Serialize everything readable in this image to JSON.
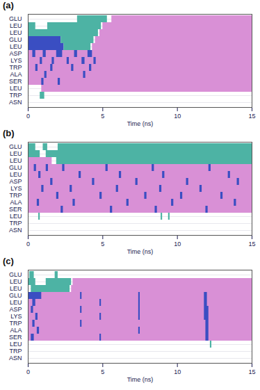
{
  "chart_data": [
    {
      "type": "timeline",
      "title": "(a)",
      "xlabel": "Time (ns)",
      "xlim": [
        0,
        15
      ],
      "xticks": [
        0,
        5,
        10,
        15
      ],
      "grid": true,
      "categories": [
        "GLU",
        "LEU",
        "LEU",
        "GLU",
        "LEU",
        "ASP",
        "LYS",
        "TRP",
        "ALA",
        "SER",
        "LEU",
        "TRP",
        "ASN"
      ],
      "segments": [
        [
          [
            3.3,
            5.3,
            "#4db3a4"
          ],
          [
            5.6,
            15,
            "#d990d6"
          ]
        ],
        [
          [
            0,
            0.5,
            "#4db3a4"
          ],
          [
            1.3,
            4.9,
            "#4db3a4"
          ],
          [
            5.0,
            15,
            "#d990d6"
          ]
        ],
        [
          [
            0,
            4.7,
            "#4db3a4"
          ],
          [
            4.8,
            15,
            "#d990d6"
          ]
        ],
        [
          [
            0,
            2.2,
            "#3a4ec2"
          ],
          [
            2.2,
            4.4,
            "#4db3a4"
          ],
          [
            4.5,
            15,
            "#d990d6"
          ]
        ],
        [
          [
            0,
            2.4,
            "#3a4ec2"
          ],
          [
            2.4,
            4.2,
            "#4db3a4"
          ],
          [
            4.3,
            15,
            "#d990d6"
          ]
        ],
        [
          [
            0,
            15,
            "#d990d6"
          ],
          [
            0.3,
            0.5,
            "#3a4ec2"
          ],
          [
            1.0,
            1.2,
            "#3a4ec2"
          ],
          [
            1.9,
            2.3,
            "#3a4ec2"
          ],
          [
            3.1,
            3.3,
            "#3a4ec2"
          ],
          [
            4.0,
            4.3,
            "#3a4ec2"
          ]
        ],
        [
          [
            0,
            15,
            "#d990d6"
          ],
          [
            0.8,
            0.95,
            "#3a4ec2"
          ],
          [
            1.6,
            1.75,
            "#3a4ec2"
          ],
          [
            2.6,
            2.75,
            "#3a4ec2"
          ],
          [
            3.6,
            3.8,
            "#3a4ec2"
          ],
          [
            4.4,
            4.55,
            "#3a4ec2"
          ]
        ],
        [
          [
            0,
            15,
            "#d990d6"
          ],
          [
            0.5,
            0.65,
            "#3a4ec2"
          ],
          [
            1.5,
            1.65,
            "#3a4ec2"
          ],
          [
            2.9,
            3.05,
            "#3a4ec2"
          ],
          [
            4.1,
            4.25,
            "#3a4ec2"
          ]
        ],
        [
          [
            0,
            15,
            "#d990d6"
          ],
          [
            1.1,
            1.25,
            "#3a4ec2"
          ],
          [
            3.7,
            3.85,
            "#3a4ec2"
          ]
        ],
        [
          [
            0,
            15,
            "#d990d6"
          ],
          [
            0.9,
            1.05,
            "#3a4ec2"
          ],
          [
            2.0,
            2.15,
            "#3a4ec2"
          ]
        ],
        [
          [
            0.9,
            15,
            "#d990d6"
          ]
        ],
        [
          [
            0.8,
            1.1,
            "#4db3a4"
          ]
        ],
        []
      ]
    },
    {
      "type": "timeline",
      "title": "(b)",
      "xlabel": "Time (ns)",
      "xlim": [
        0,
        15
      ],
      "xticks": [
        0,
        5,
        10,
        15
      ],
      "grid": true,
      "categories": [
        "GLU",
        "LEU",
        "LEU",
        "GLU",
        "LEU",
        "ASP",
        "LYS",
        "TRP",
        "ALA",
        "SER",
        "LEU",
        "TRP",
        "ASN"
      ],
      "segments": [
        [
          [
            0,
            0.5,
            "#4db3a4"
          ],
          [
            1.0,
            1.3,
            "#4db3a4"
          ],
          [
            2.0,
            15,
            "#4db3a4"
          ]
        ],
        [
          [
            0,
            0.8,
            "#4db3a4"
          ],
          [
            1.2,
            15,
            "#4db3a4"
          ]
        ],
        [
          [
            0,
            1.6,
            "#d990d6"
          ],
          [
            1.9,
            15,
            "#4db3a4"
          ]
        ],
        [
          [
            0,
            15,
            "#d990d6"
          ],
          [
            0.4,
            0.55,
            "#3a4ec2"
          ],
          [
            1.2,
            1.35,
            "#3a4ec2"
          ],
          [
            2.3,
            2.45,
            "#3a4ec2"
          ],
          [
            5.2,
            5.35,
            "#3a4ec2"
          ],
          [
            8.3,
            8.45,
            "#3a4ec2"
          ],
          [
            12.1,
            12.25,
            "#3a4ec2"
          ]
        ],
        [
          [
            0,
            15,
            "#d990d6"
          ],
          [
            0.7,
            0.85,
            "#3a4ec2"
          ],
          [
            3.4,
            3.55,
            "#3a4ec2"
          ],
          [
            6.1,
            6.25,
            "#3a4ec2"
          ],
          [
            9.0,
            9.15,
            "#3a4ec2"
          ],
          [
            13.4,
            13.55,
            "#3a4ec2"
          ]
        ],
        [
          [
            0,
            15,
            "#d990d6"
          ],
          [
            1.5,
            1.65,
            "#3a4ec2"
          ],
          [
            4.3,
            4.45,
            "#3a4ec2"
          ],
          [
            7.2,
            7.35,
            "#3a4ec2"
          ],
          [
            10.6,
            10.75,
            "#3a4ec2"
          ],
          [
            14.0,
            14.15,
            "#3a4ec2"
          ]
        ],
        [
          [
            0,
            15,
            "#d990d6"
          ],
          [
            0.9,
            1.05,
            "#3a4ec2"
          ],
          [
            2.8,
            2.95,
            "#3a4ec2"
          ],
          [
            5.9,
            6.05,
            "#3a4ec2"
          ],
          [
            8.8,
            8.95,
            "#3a4ec2"
          ],
          [
            11.5,
            11.65,
            "#3a4ec2"
          ]
        ],
        [
          [
            0,
            15,
            "#d990d6"
          ],
          [
            1.9,
            2.05,
            "#3a4ec2"
          ],
          [
            4.8,
            4.95,
            "#3a4ec2"
          ],
          [
            7.8,
            7.95,
            "#3a4ec2"
          ],
          [
            10.2,
            10.35,
            "#3a4ec2"
          ],
          [
            12.9,
            13.05,
            "#3a4ec2"
          ]
        ],
        [
          [
            0,
            15,
            "#d990d6"
          ],
          [
            0.6,
            0.75,
            "#3a4ec2"
          ],
          [
            3.0,
            3.15,
            "#3a4ec2"
          ],
          [
            6.6,
            6.75,
            "#3a4ec2"
          ],
          [
            9.6,
            9.75,
            "#3a4ec2"
          ],
          [
            13.8,
            13.95,
            "#3a4ec2"
          ]
        ],
        [
          [
            0,
            15,
            "#d990d6"
          ],
          [
            2.2,
            2.35,
            "#3a4ec2"
          ],
          [
            5.5,
            5.65,
            "#3a4ec2"
          ],
          [
            8.5,
            8.65,
            "#3a4ec2"
          ],
          [
            11.9,
            12.05,
            "#3a4ec2"
          ]
        ],
        [
          [
            0.7,
            0.8,
            "#4db3a4"
          ],
          [
            8.9,
            9.0,
            "#4db3a4"
          ],
          [
            9.4,
            9.5,
            "#4db3a4"
          ]
        ],
        [],
        []
      ]
    },
    {
      "type": "timeline",
      "title": "(c)",
      "xlabel": "Time (ns)",
      "xlim": [
        0,
        15
      ],
      "xticks": [
        0,
        5,
        10,
        15
      ],
      "grid": true,
      "categories": [
        "GLU",
        "LEU",
        "LEU",
        "GLU",
        "LEU",
        "ASP",
        "LYS",
        "TRP",
        "ALA",
        "SER",
        "LEU",
        "TRP",
        "ASN"
      ],
      "segments": [
        [
          [
            0.1,
            0.4,
            "#4db3a4"
          ],
          [
            1.8,
            2.0,
            "#4db3a4"
          ]
        ],
        [
          [
            0,
            0.5,
            "#4db3a4"
          ],
          [
            1.2,
            2.9,
            "#4db3a4"
          ],
          [
            3.0,
            15,
            "#d990d6"
          ]
        ],
        [
          [
            0.2,
            2.8,
            "#4db3a4"
          ],
          [
            2.9,
            15,
            "#d990d6"
          ]
        ],
        [
          [
            0,
            15,
            "#d990d6"
          ],
          [
            0,
            0.9,
            "#3a4ec2"
          ],
          [
            3.5,
            3.6,
            "#3a4ec2"
          ],
          [
            7.4,
            7.5,
            "#3a4ec2"
          ],
          [
            11.8,
            12.0,
            "#3a4ec2"
          ]
        ],
        [
          [
            0,
            15,
            "#d990d6"
          ],
          [
            0.3,
            0.5,
            "#3a4ec2"
          ],
          [
            4.8,
            4.9,
            "#3a4ec2"
          ],
          [
            7.4,
            7.5,
            "#3a4ec2"
          ],
          [
            11.8,
            12.0,
            "#3a4ec2"
          ]
        ],
        [
          [
            0,
            15,
            "#d990d6"
          ],
          [
            0.2,
            0.35,
            "#3a4ec2"
          ],
          [
            3.5,
            3.6,
            "#3a4ec2"
          ],
          [
            7.4,
            7.5,
            "#3a4ec2"
          ],
          [
            11.8,
            12.1,
            "#3a4ec2"
          ]
        ],
        [
          [
            0,
            15,
            "#d990d6"
          ],
          [
            0.5,
            0.65,
            "#3a4ec2"
          ],
          [
            4.8,
            4.9,
            "#3a4ec2"
          ],
          [
            7.4,
            7.5,
            "#3a4ec2"
          ],
          [
            11.8,
            12.1,
            "#3a4ec2"
          ]
        ],
        [
          [
            0,
            15,
            "#d990d6"
          ],
          [
            0.3,
            0.45,
            "#3a4ec2"
          ],
          [
            3.5,
            3.6,
            "#3a4ec2"
          ],
          [
            11.9,
            12.1,
            "#3a4ec2"
          ]
        ],
        [
          [
            0,
            15,
            "#d990d6"
          ],
          [
            0.6,
            0.75,
            "#3a4ec2"
          ],
          [
            7.4,
            7.5,
            "#3a4ec2"
          ],
          [
            11.9,
            12.1,
            "#3a4ec2"
          ]
        ],
        [
          [
            0,
            15,
            "#d990d6"
          ],
          [
            0.2,
            0.4,
            "#3a4ec2"
          ],
          [
            4.8,
            4.9,
            "#3a4ec2"
          ],
          [
            11.9,
            12.1,
            "#3a4ec2"
          ]
        ],
        [
          [
            12.2,
            12.3,
            "#4db3a4"
          ]
        ],
        [],
        []
      ]
    }
  ]
}
